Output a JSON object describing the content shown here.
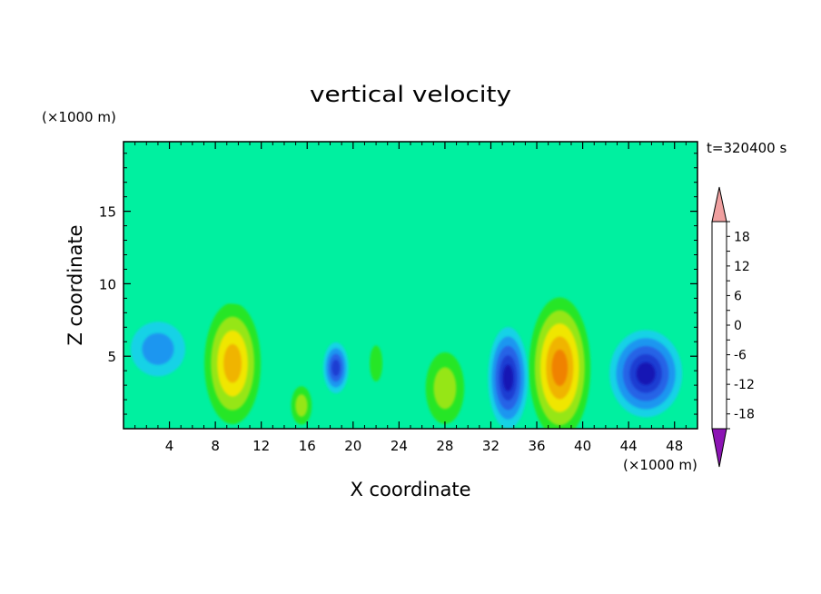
{
  "chart_data": {
    "type": "heatmap",
    "title": "vertical velocity",
    "xlabel": "X coordinate",
    "ylabel": "Z coordinate",
    "x_unit": "(×1000 m)",
    "y_unit": "(×1000 m)",
    "time_label": "t=320400 s",
    "xlim": [
      0,
      50
    ],
    "ylim": [
      0,
      19.8
    ],
    "x_ticks": [
      4,
      8,
      12,
      16,
      20,
      24,
      28,
      32,
      36,
      40,
      44,
      48
    ],
    "y_ticks": [
      5,
      10,
      15
    ],
    "colorbar": {
      "levels": [
        -21,
        -18,
        -15,
        -12,
        -9,
        -6,
        -3,
        0,
        3,
        6,
        9,
        12,
        15,
        18,
        21
      ],
      "tick_values": [
        18,
        12,
        6,
        0,
        -6,
        -12,
        -18
      ],
      "colors": [
        "#6a0fa0",
        "#3a10a8",
        "#1414b4",
        "#1e3cd2",
        "#2864e6",
        "#1e96f0",
        "#14d2e6",
        "#00f0a0",
        "#28e628",
        "#96e614",
        "#f0e600",
        "#f0b400",
        "#f08200",
        "#f04b00",
        "#e61414"
      ],
      "over_color": "#f0a0a0",
      "under_color": "#8c14b4"
    },
    "features": [
      {
        "x": 9.5,
        "z": 4.5,
        "value": 15,
        "kind": "updraft"
      },
      {
        "x": 15.5,
        "z": 1.6,
        "value": 9,
        "kind": "updraft"
      },
      {
        "x": 22,
        "z": 4.5,
        "value": 5,
        "kind": "updraft"
      },
      {
        "x": 28,
        "z": 2.8,
        "value": 9,
        "kind": "updraft"
      },
      {
        "x": 38,
        "z": 4.2,
        "value": 17,
        "kind": "updraft"
      },
      {
        "x": 10,
        "z": 13,
        "value": 3,
        "kind": "updraft"
      },
      {
        "x": 18.5,
        "z": 4.2,
        "value": -10,
        "kind": "downdraft"
      },
      {
        "x": 33.5,
        "z": 3.5,
        "value": -15,
        "kind": "downdraft"
      },
      {
        "x": 45.5,
        "z": 3.8,
        "value": -14,
        "kind": "downdraft"
      },
      {
        "x": 3,
        "z": 5.5,
        "value": -5,
        "kind": "downdraft"
      }
    ]
  }
}
